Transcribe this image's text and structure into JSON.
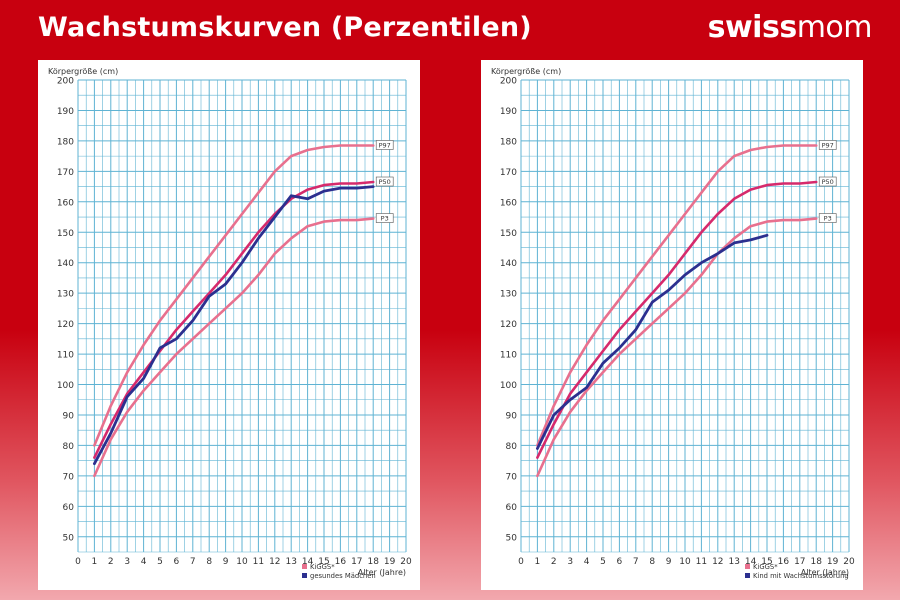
{
  "header": {
    "title": "Wachstumskurven (Perzentilen)",
    "logo_text_a": "swiss",
    "logo_text_b": "mom"
  },
  "colors": {
    "grid": "#5fb3d3",
    "p3_p97": "#e8708e",
    "p50": "#d62a6c",
    "child": "#2c2f8f",
    "background": "#c8000f"
  },
  "chart_data": [
    {
      "type": "line",
      "ylabel": "Körpergröße (cm)",
      "xlabel": "Alter (Jahre)",
      "xlim": [
        0,
        20
      ],
      "ylim": [
        45,
        200
      ],
      "x_ticks": [
        0,
        1,
        2,
        3,
        4,
        5,
        6,
        7,
        8,
        9,
        10,
        11,
        12,
        13,
        14,
        15,
        16,
        17,
        18,
        19,
        20
      ],
      "y_ticks": [
        50,
        60,
        70,
        80,
        90,
        100,
        110,
        120,
        130,
        140,
        150,
        160,
        170,
        180,
        190,
        200
      ],
      "grid": true,
      "series": [
        {
          "name": "P97",
          "color": "#e8708e",
          "x": [
            1,
            2,
            3,
            4,
            5,
            6,
            7,
            8,
            9,
            10,
            11,
            12,
            13,
            14,
            15,
            16,
            17,
            18
          ],
          "y": [
            80,
            93,
            104,
            113,
            121,
            128,
            135,
            142,
            149,
            156,
            163,
            170,
            175,
            177,
            178,
            178.5,
            178.5,
            178.5
          ]
        },
        {
          "name": "P50",
          "color": "#d62a6c",
          "x": [
            1,
            2,
            3,
            4,
            5,
            6,
            7,
            8,
            9,
            10,
            11,
            12,
            13,
            14,
            15,
            16,
            17,
            18
          ],
          "y": [
            76,
            87,
            97,
            104,
            111,
            118,
            124,
            130,
            136,
            143,
            150,
            156,
            161,
            164,
            165.5,
            166,
            166,
            166.5
          ]
        },
        {
          "name": "P3",
          "color": "#e8708e",
          "x": [
            1,
            2,
            3,
            4,
            5,
            6,
            7,
            8,
            9,
            10,
            11,
            12,
            13,
            14,
            15,
            16,
            17,
            18
          ],
          "y": [
            70,
            82,
            91,
            98,
            104,
            110,
            115,
            120,
            125,
            130,
            136,
            143,
            148,
            152,
            153.5,
            154,
            154,
            154.5
          ]
        },
        {
          "name": "gesundes Mädchen",
          "color": "#2c2f8f",
          "x": [
            1,
            2,
            3,
            4,
            5,
            6,
            7,
            8,
            9,
            10,
            11,
            12,
            13,
            14,
            15,
            16,
            17,
            18
          ],
          "y": [
            74,
            84,
            96,
            102,
            112,
            115,
            121,
            129,
            133,
            140,
            148,
            155,
            162,
            161,
            163.5,
            164.5,
            164.5,
            165
          ]
        }
      ],
      "line_labels": [
        "P97",
        "P50",
        "P3"
      ],
      "legend": {
        "position": "bottom-right",
        "entries": [
          {
            "label": "KiGGS*",
            "color": "#e8708e"
          },
          {
            "label": "gesundes Mädchen",
            "color": "#2c2f8f"
          }
        ]
      }
    },
    {
      "type": "line",
      "ylabel": "Körpergröße (cm)",
      "xlabel": "Alter (Jahre)",
      "xlim": [
        0,
        20
      ],
      "ylim": [
        45,
        200
      ],
      "x_ticks": [
        0,
        1,
        2,
        3,
        4,
        5,
        6,
        7,
        8,
        9,
        10,
        11,
        12,
        13,
        14,
        15,
        16,
        17,
        18,
        19,
        20
      ],
      "y_ticks": [
        50,
        60,
        70,
        80,
        90,
        100,
        110,
        120,
        130,
        140,
        150,
        160,
        170,
        180,
        190,
        200
      ],
      "grid": true,
      "series": [
        {
          "name": "P97",
          "color": "#e8708e",
          "x": [
            1,
            2,
            3,
            4,
            5,
            6,
            7,
            8,
            9,
            10,
            11,
            12,
            13,
            14,
            15,
            16,
            17,
            18
          ],
          "y": [
            80,
            93,
            104,
            113,
            121,
            128,
            135,
            142,
            149,
            156,
            163,
            170,
            175,
            177,
            178,
            178.5,
            178.5,
            178.5
          ]
        },
        {
          "name": "P50",
          "color": "#d62a6c",
          "x": [
            1,
            2,
            3,
            4,
            5,
            6,
            7,
            8,
            9,
            10,
            11,
            12,
            13,
            14,
            15,
            16,
            17,
            18
          ],
          "y": [
            76,
            87,
            97,
            104,
            111,
            118,
            124,
            130,
            136,
            143,
            150,
            156,
            161,
            164,
            165.5,
            166,
            166,
            166.5
          ]
        },
        {
          "name": "P3",
          "color": "#e8708e",
          "x": [
            1,
            2,
            3,
            4,
            5,
            6,
            7,
            8,
            9,
            10,
            11,
            12,
            13,
            14,
            15,
            16,
            17,
            18
          ],
          "y": [
            70,
            82,
            91,
            98,
            104,
            110,
            115,
            120,
            125,
            130,
            136,
            143,
            148,
            152,
            153.5,
            154,
            154,
            154.5
          ]
        },
        {
          "name": "Kind mit Wachstumsstörung",
          "color": "#2c2f8f",
          "x": [
            1,
            2,
            3,
            4,
            5,
            6,
            7,
            8,
            9,
            10,
            11,
            12,
            13,
            14,
            15
          ],
          "y": [
            79,
            90,
            95,
            99,
            107,
            112,
            118,
            127,
            131,
            136,
            140,
            143,
            146.5,
            147.5,
            149
          ]
        }
      ],
      "line_labels": [
        "P97",
        "P50",
        "P3"
      ],
      "legend": {
        "position": "bottom-right",
        "entries": [
          {
            "label": "KiGGS*",
            "color": "#e8708e"
          },
          {
            "label": "Kind mit Wachstumsstörung",
            "color": "#2c2f8f"
          }
        ]
      }
    }
  ]
}
